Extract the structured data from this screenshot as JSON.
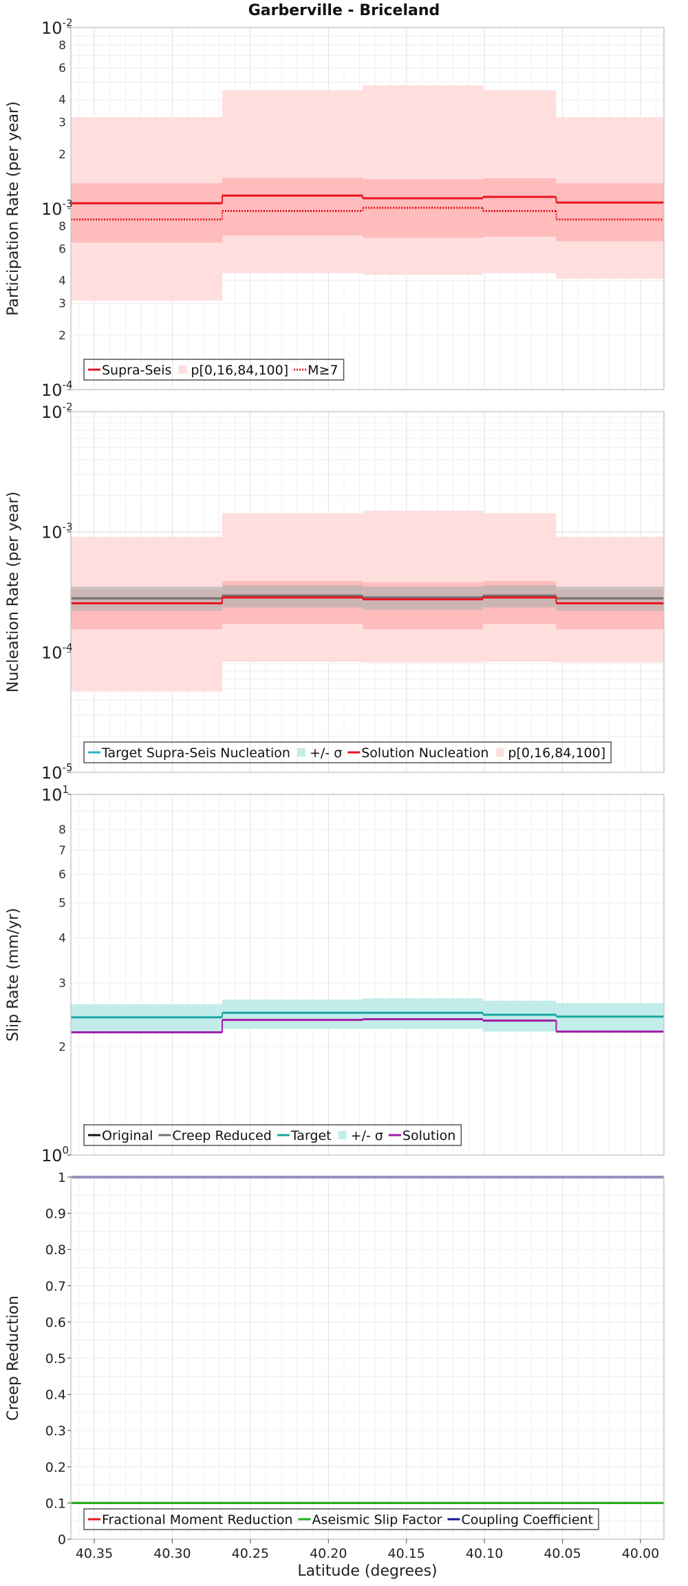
{
  "figure": {
    "title": "Garberville - Briceland",
    "xlabel": "Latitude (degrees)",
    "x_ticks": [
      "40.35",
      "40.30",
      "40.25",
      "40.20",
      "40.15",
      "40.10",
      "40.05",
      "40.00"
    ]
  },
  "colors": {
    "red": "#e8141e",
    "band_light": "#ffdede",
    "band_mid": "#ffbcbc",
    "gray_band": "#b0b0b0",
    "gray_line": "#707070",
    "teal": "#1aa5a0",
    "teal_band": "#c2ecea",
    "purple": "#a01aa8",
    "green": "#19b419",
    "navy": "#14148c",
    "cyan_swatch": "#29b7cf",
    "grid": "#e6e6e6",
    "frame": "#c8c8c8"
  },
  "chart_data": [
    {
      "type": "line",
      "ylabel": "Participation Rate (per year)",
      "yscale": "log",
      "ylim": [
        0.0001,
        0.01
      ],
      "xlim": [
        40.365,
        39.985
      ],
      "x_reversed": true,
      "ytick_major": [
        "10^-4",
        "10^-3",
        "10^-2"
      ],
      "ytick_minor_labels": [
        "2",
        "3",
        "4",
        "6",
        "8"
      ],
      "segments": [
        [
          40.365,
          40.268
        ],
        [
          40.268,
          40.178
        ],
        [
          40.178,
          40.101
        ],
        [
          40.101,
          40.054
        ],
        [
          40.054,
          39.985
        ]
      ],
      "bands": [
        {
          "name": "p0-100",
          "low": [
            0.00031,
            0.00044,
            0.00043,
            0.00044,
            0.00041
          ],
          "high": [
            0.0032,
            0.0045,
            0.0048,
            0.0045,
            0.0032
          ]
        },
        {
          "name": "p16-84",
          "low": [
            0.00065,
            0.00071,
            0.00069,
            0.0007,
            0.00066
          ],
          "high": [
            0.00138,
            0.00148,
            0.00145,
            0.00147,
            0.00138
          ]
        }
      ],
      "series": [
        {
          "name": "Supra-Seis",
          "style": "solid",
          "values": [
            0.00107,
            0.00118,
            0.00114,
            0.00116,
            0.00108
          ]
        },
        {
          "name": "M≥7",
          "style": "dotted",
          "values": [
            0.00087,
            0.00097,
            0.00101,
            0.00097,
            0.00087
          ]
        }
      ],
      "legend": {
        "placement": "bottom-left",
        "entries": [
          {
            "label": "Supra-Seis",
            "kind": "line",
            "color": "red"
          },
          {
            "label": "p[0,16,84,100]",
            "kind": "swatch",
            "color": "band_light"
          },
          {
            "label": "M≥7",
            "kind": "dotted",
            "color": "red"
          }
        ]
      }
    },
    {
      "type": "line",
      "ylabel": "Nucleation Rate (per year)",
      "yscale": "log",
      "ylim": [
        1e-05,
        0.01
      ],
      "xlim": [
        40.365,
        39.985
      ],
      "x_reversed": true,
      "ytick_major": [
        "10^-5",
        "10^-4",
        "10^-3",
        "10^-2"
      ],
      "ytick_minor_labels": [],
      "segments": [
        [
          40.365,
          40.268
        ],
        [
          40.268,
          40.178
        ],
        [
          40.178,
          40.101
        ],
        [
          40.101,
          40.054
        ],
        [
          40.054,
          39.985
        ]
      ],
      "bands": [
        {
          "name": "p0-100",
          "low": [
            4.7e-05,
            8.3e-05,
            8.2e-05,
            8.3e-05,
            8.2e-05
          ],
          "high": [
            0.00091,
            0.00143,
            0.0015,
            0.00143,
            0.00091
          ]
        },
        {
          "name": "p16-84",
          "low": [
            0.000155,
            0.000172,
            0.000155,
            0.000172,
            0.000155
          ],
          "high": [
            0.00033,
            0.00039,
            0.00038,
            0.00039,
            0.00033
          ]
        },
        {
          "name": "target +/- sigma",
          "low": [
            0.00022,
            0.000235,
            0.000225,
            0.000235,
            0.00022
          ],
          "high": [
            0.00035,
            0.00036,
            0.00035,
            0.00036,
            0.00035
          ]
        }
      ],
      "series": [
        {
          "name": "Target Supra-Seis Nucleation",
          "style": "solid",
          "values": [
            0.00028,
            0.000295,
            0.000285,
            0.000295,
            0.00028
          ]
        },
        {
          "name": "Solution Nucleation",
          "style": "solid",
          "values": [
            0.000255,
            0.000285,
            0.000275,
            0.000285,
            0.000255
          ]
        }
      ],
      "legend": {
        "placement": "bottom-left",
        "entries": [
          {
            "label": "Target Supra-Seis Nucleation",
            "kind": "line",
            "color": "cyan_swatch"
          },
          {
            "label": "+/- σ",
            "kind": "swatch",
            "color": "teal_band"
          },
          {
            "label": "Solution Nucleation",
            "kind": "line",
            "color": "red"
          },
          {
            "label": "p[0,16,84,100]",
            "kind": "swatch",
            "color": "band_light"
          }
        ]
      }
    },
    {
      "type": "line",
      "ylabel": "Slip Rate (mm/yr)",
      "yscale": "log",
      "ylim": [
        1,
        10
      ],
      "xlim": [
        40.365,
        39.985
      ],
      "x_reversed": true,
      "ytick_major": [
        "10^0",
        "10^1"
      ],
      "ytick_minor_labels": [
        "2",
        "3",
        "4",
        "5",
        "6",
        "7",
        "8"
      ],
      "segments": [
        [
          40.365,
          40.268
        ],
        [
          40.268,
          40.178
        ],
        [
          40.178,
          40.101
        ],
        [
          40.101,
          40.054
        ],
        [
          40.054,
          39.985
        ]
      ],
      "bands": [
        {
          "name": "+/- sigma",
          "low": [
            2.2,
            2.24,
            2.24,
            2.2,
            2.2
          ],
          "high": [
            2.62,
            2.7,
            2.72,
            2.68,
            2.64
          ]
        }
      ],
      "series": [
        {
          "name": "Target",
          "style": "solid",
          "values": [
            2.41,
            2.48,
            2.48,
            2.45,
            2.42
          ]
        },
        {
          "name": "Solution",
          "style": "solid",
          "values": [
            2.19,
            2.37,
            2.38,
            2.36,
            2.2
          ]
        }
      ],
      "legend": {
        "placement": "bottom-left",
        "entries": [
          {
            "label": "Original",
            "kind": "line",
            "color": "black"
          },
          {
            "label": "Creep Reduced",
            "kind": "line",
            "color": "gray_line"
          },
          {
            "label": "Target",
            "kind": "line",
            "color": "teal"
          },
          {
            "label": "+/- σ",
            "kind": "swatch",
            "color": "teal_band"
          },
          {
            "label": "Solution",
            "kind": "line",
            "color": "purple"
          }
        ]
      }
    },
    {
      "type": "line",
      "ylabel": "Creep Reduction",
      "yscale": "linear",
      "ylim": [
        0,
        1
      ],
      "xlim": [
        40.365,
        39.985
      ],
      "x_reversed": true,
      "ytick_labels": [
        "0",
        "0.1",
        "0.2",
        "0.3",
        "0.4",
        "0.5",
        "0.6",
        "0.7",
        "0.8",
        "0.9",
        "1"
      ],
      "series": [
        {
          "name": "Fractional Moment Reduction",
          "style": "solid",
          "value": 0.1
        },
        {
          "name": "Aseismic Slip Factor",
          "style": "solid",
          "value": 0.1
        },
        {
          "name": "Coupling Coefficient",
          "style": "solid",
          "value": 1.0
        }
      ],
      "legend": {
        "placement": "bottom-left",
        "entries": [
          {
            "label": "Fractional Moment Reduction",
            "kind": "line",
            "color": "red"
          },
          {
            "label": "Aseismic Slip Factor",
            "kind": "line",
            "color": "green"
          },
          {
            "label": "Coupling Coefficient",
            "kind": "line",
            "color": "navy"
          }
        ]
      }
    }
  ]
}
